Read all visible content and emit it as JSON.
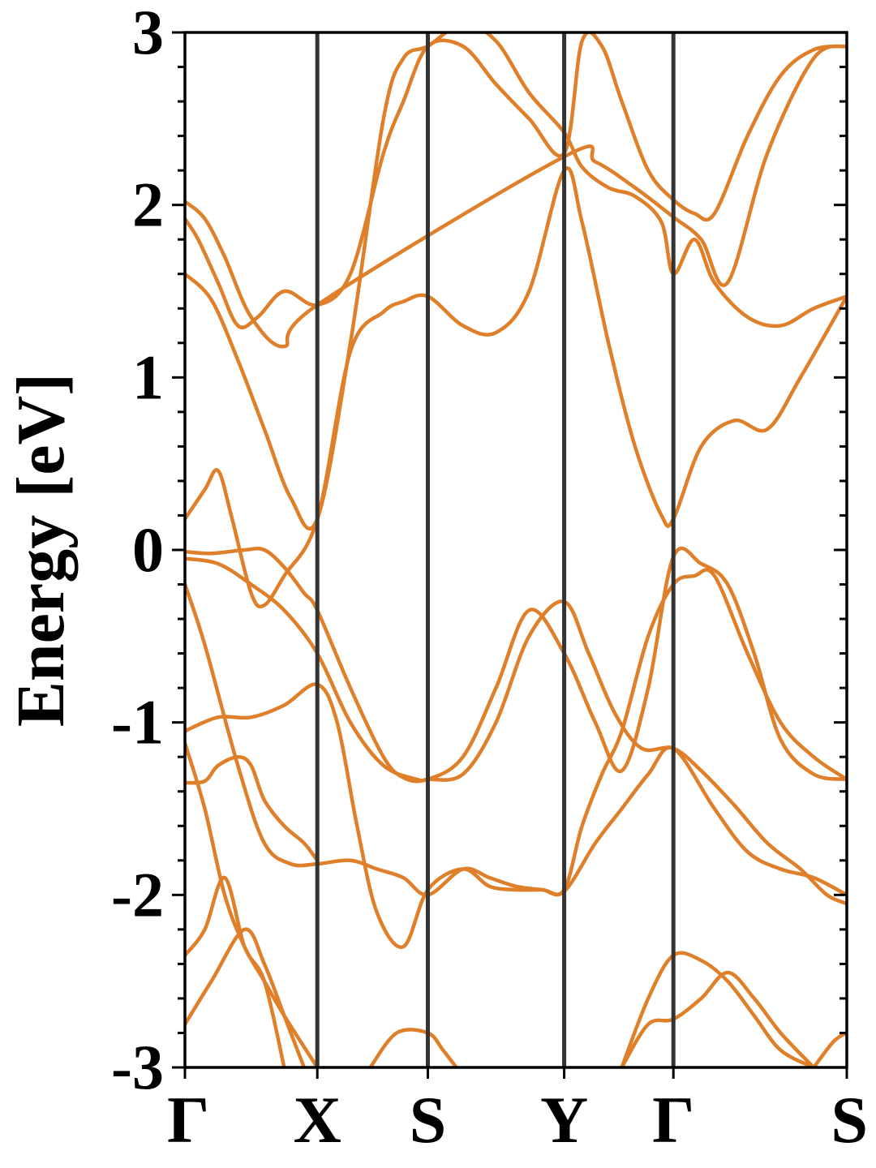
{
  "chart_data": {
    "type": "line",
    "title": "",
    "xlabel": "",
    "ylabel": "Energy [eV]",
    "ylim": [
      -3,
      3
    ],
    "grid": false,
    "legend": "none",
    "yticks": [
      -3,
      -2,
      -1,
      0,
      1,
      2,
      3
    ],
    "ytick_labels": [
      "-3",
      "-2",
      "-1",
      "0",
      "1",
      "2",
      "3"
    ],
    "yminor_step": 0.2,
    "kpath": [
      "Γ",
      "X",
      "S",
      "Y",
      "Γ",
      "S"
    ],
    "kpath_positions": [
      0,
      0.2,
      0.367,
      0.573,
      0.738,
      1.0
    ],
    "colors": {
      "band": "#e07f2a",
      "band_highlight": "#f08518",
      "kline": "#333333",
      "axes": "#000000"
    },
    "series": [
      {
        "x": [
          0,
          0.03,
          0.08,
          0.12,
          0.16,
          0.2,
          0.25,
          0.29,
          0.33,
          0.367,
          0.42,
          0.46,
          0.5,
          0.54,
          0.573,
          0.62,
          0.66,
          0.7,
          0.738,
          0.8,
          0.85,
          0.9,
          0.95,
          1.0
        ],
        "y": [
          -0.2,
          -0.55,
          -1.25,
          -1.7,
          -1.82,
          -1.82,
          -1.8,
          -1.85,
          -1.9,
          -2.0,
          -1.85,
          -1.9,
          -1.95,
          -1.97,
          -1.98,
          -1.7,
          -1.5,
          -1.3,
          -1.15,
          -1.5,
          -1.75,
          -1.85,
          -1.9,
          -2.0
        ]
      },
      {
        "x": [
          0,
          0.05,
          0.1,
          0.15,
          0.2,
          0.23,
          0.26,
          0.29,
          0.33,
          0.367,
          0.42,
          0.46,
          0.5,
          0.54,
          0.573,
          0.6,
          0.63,
          0.66,
          0.7,
          0.738,
          0.77,
          0.8,
          0.85,
          0.9,
          0.95,
          1.0
        ],
        "y": [
          -1.05,
          -0.97,
          -0.97,
          -0.9,
          -0.78,
          -1.0,
          -1.6,
          -2.1,
          -2.3,
          -1.97,
          -1.85,
          -1.95,
          -1.97,
          -1.97,
          -1.97,
          -1.6,
          -1.3,
          -1.05,
          -0.5,
          -0.2,
          -0.15,
          -0.15,
          -0.6,
          -1.0,
          -1.2,
          -1.33
        ]
      },
      {
        "x": [
          0,
          0.05,
          0.1,
          0.15,
          0.2,
          0.25,
          0.3,
          0.35,
          0.367,
          0.42,
          0.47,
          0.52,
          0.573,
          0.61,
          0.65,
          0.69,
          0.738,
          0.78,
          0.83,
          0.88,
          0.93,
          0.97,
          1.0
        ],
        "y": [
          -0.05,
          -0.08,
          -0.2,
          -0.35,
          -0.6,
          -1.0,
          -1.25,
          -1.33,
          -1.33,
          -1.3,
          -1.0,
          -0.5,
          -0.3,
          -0.6,
          -0.95,
          -1.15,
          -1.15,
          -1.28,
          -1.48,
          -1.7,
          -1.85,
          -2.0,
          -2.05
        ]
      },
      {
        "x": [
          0,
          0.04,
          0.09,
          0.12,
          0.15,
          0.18,
          0.2,
          0.25,
          0.3,
          0.33,
          0.367,
          0.42,
          0.47,
          0.52,
          0.573,
          0.62,
          0.66,
          0.7,
          0.738,
          0.78,
          0.82,
          0.86,
          0.9,
          0.95,
          1.0
        ],
        "y": [
          -0.01,
          -0.02,
          0.0,
          0.0,
          -0.1,
          -0.25,
          -0.35,
          -0.8,
          -1.2,
          -1.32,
          -1.33,
          -1.2,
          -0.8,
          -0.35,
          -0.6,
          -1.0,
          -1.28,
          -0.8,
          -0.04,
          -0.08,
          -0.2,
          -0.6,
          -1.1,
          -1.3,
          -1.33
        ]
      },
      {
        "x": [
          0,
          0.03,
          0.05,
          0.07,
          0.1,
          0.12,
          0.15,
          0.2,
          0.25,
          0.3,
          0.33,
          0.367,
          0.42,
          0.47,
          0.52,
          0.573,
          0.6,
          0.64,
          0.68,
          0.72,
          0.738,
          0.78,
          0.83,
          0.88,
          0.93,
          1.0
        ],
        "y": [
          0.18,
          0.35,
          0.46,
          0.2,
          -0.25,
          -0.32,
          -0.15,
          0.18,
          1.15,
          1.38,
          1.44,
          1.47,
          1.3,
          1.26,
          1.5,
          2.2,
          1.9,
          1.2,
          0.6,
          0.2,
          0.18,
          0.6,
          0.75,
          0.7,
          1.0,
          1.47
        ]
      },
      {
        "x": [
          0,
          0.04,
          0.08,
          0.12,
          0.16,
          0.2,
          0.25,
          0.3,
          0.33,
          0.367,
          0.42,
          0.47,
          0.52,
          0.573,
          0.6,
          0.64,
          0.68,
          0.72,
          0.738,
          0.77,
          0.8,
          0.85,
          0.9,
          0.95,
          1.0
        ],
        "y": [
          1.6,
          1.45,
          1.1,
          0.7,
          0.3,
          0.18,
          1.2,
          2.5,
          2.85,
          2.92,
          3.05,
          2.95,
          2.65,
          2.42,
          2.22,
          2.1,
          2.05,
          1.9,
          1.6,
          1.8,
          1.55,
          1.35,
          1.3,
          1.4,
          1.47
        ]
      },
      {
        "x": [
          0,
          0.02,
          0.05,
          0.08,
          0.11,
          0.15,
          0.2,
          0.25,
          0.3,
          0.33,
          0.367,
          0.42,
          0.47,
          0.52,
          0.573,
          0.6,
          0.63,
          0.66,
          0.7,
          0.738,
          0.77,
          0.8,
          0.85,
          0.9,
          0.95,
          1.0
        ],
        "y": [
          1.92,
          1.8,
          1.55,
          1.3,
          1.35,
          1.5,
          1.42,
          1.6,
          2.3,
          2.6,
          2.92,
          2.92,
          2.7,
          2.5,
          2.3,
          2.95,
          2.92,
          2.6,
          2.2,
          2.03,
          1.95,
          1.95,
          2.4,
          2.75,
          2.9,
          2.92
        ]
      },
      {
        "x": [
          0,
          0.03,
          0.06,
          0.1,
          0.15,
          0.2,
          0.573,
          0.62,
          0.68,
          0.738,
          0.78,
          0.82,
          0.88,
          0.95,
          1.0
        ],
        "y": [
          2.02,
          1.92,
          1.7,
          1.35,
          1.18,
          1.42,
          2.28,
          2.25,
          2.1,
          1.93,
          1.8,
          1.55,
          2.3,
          2.85,
          2.92
        ]
      },
      {
        "x": [
          0,
          0.03,
          0.05,
          0.08,
          0.1,
          0.12,
          0.15,
          0.18,
          0.2
        ],
        "y": [
          -1.35,
          -1.34,
          -1.25,
          -1.2,
          -1.25,
          -1.45,
          -1.6,
          -1.7,
          -1.8
        ]
      },
      {
        "x": [
          0,
          0.03,
          0.06,
          0.09,
          0.12,
          0.15,
          0.2
        ],
        "y": [
          -1.12,
          -1.5,
          -2.0,
          -2.3,
          -2.5,
          -2.7,
          -3.0
        ]
      },
      {
        "x": [
          0,
          0.03,
          0.06,
          0.09,
          0.12,
          0.15
        ],
        "y": [
          -2.35,
          -2.2,
          -1.9,
          -2.3,
          -2.5,
          -3.0
        ]
      },
      {
        "x": [
          0,
          0.04,
          0.09,
          0.12,
          0.15,
          0.18
        ],
        "y": [
          -2.75,
          -2.5,
          -2.2,
          -2.4,
          -2.7,
          -3.0
        ]
      },
      {
        "x": [
          0.28,
          0.32,
          0.367,
          0.39,
          0.41
        ],
        "y": [
          -3.0,
          -2.8,
          -2.8,
          -2.9,
          -3.0
        ]
      },
      {
        "x": [
          0.66,
          0.7,
          0.738,
          0.78,
          0.82,
          0.86,
          0.9,
          0.95
        ],
        "y": [
          -3.0,
          -2.75,
          -2.72,
          -2.6,
          -2.45,
          -2.6,
          -2.8,
          -3.0
        ]
      },
      {
        "x": [
          0.66,
          0.7,
          0.738,
          0.78,
          0.82,
          0.86,
          0.9,
          0.95
        ],
        "y": [
          -3.0,
          -2.6,
          -2.35,
          -2.38,
          -2.5,
          -2.7,
          -2.9,
          -3.0
        ]
      },
      {
        "x": [
          0.95,
          0.98,
          1.0
        ],
        "y": [
          -3.0,
          -2.85,
          -2.8
        ]
      }
    ]
  }
}
